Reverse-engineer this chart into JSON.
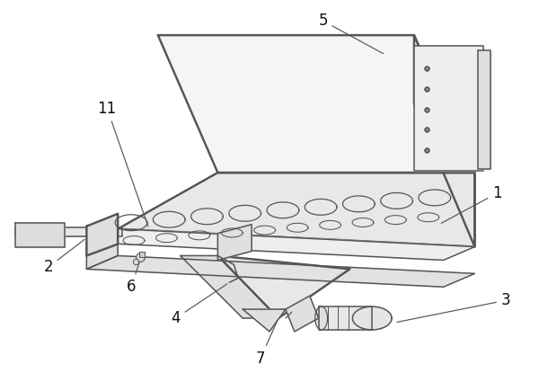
{
  "background_color": "#ffffff",
  "line_color": "#555555",
  "line_width": 1.1,
  "figsize": [
    6.0,
    4.15
  ],
  "dpi": 100,
  "label_fontsize": 12
}
